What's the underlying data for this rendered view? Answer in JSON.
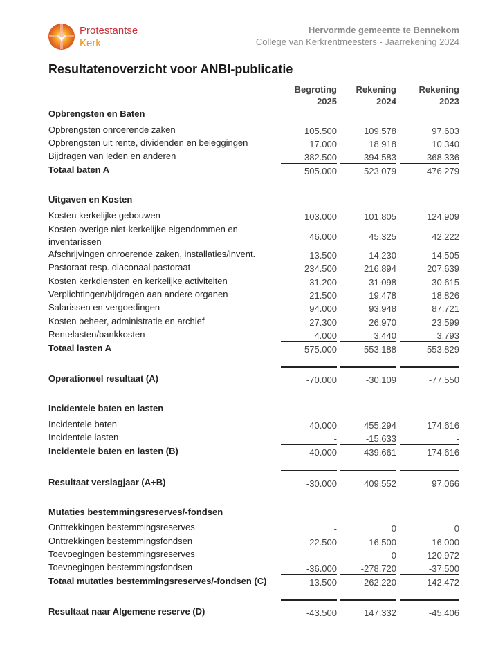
{
  "header": {
    "brand_line1": "Protestantse",
    "brand_line2": "Kerk",
    "organization": "Hervormde gemeente te Bennekom",
    "subtitle": "College van Kerkrentmeesters - Jaarrekening 2024",
    "colors": {
      "brand_red": "#c8313b",
      "brand_orange": "#e8941a"
    }
  },
  "title": "Resultatenoverzicht voor ANBI-publicatie",
  "columns": [
    {
      "line1": "Begroting",
      "line2": "2025"
    },
    {
      "line1": "Rekening",
      "line2": "2024"
    },
    {
      "line1": "Rekening",
      "line2": "2023"
    }
  ],
  "rows": [
    {
      "type": "section",
      "label": "Opbrengsten en Baten"
    },
    {
      "type": "item",
      "label": "Opbrengsten onroerende zaken",
      "values": [
        "105.500",
        "109.578",
        "97.603"
      ]
    },
    {
      "type": "item",
      "label": "Opbrengsten uit rente, dividenden en beleggingen",
      "values": [
        "17.000",
        "18.918",
        "10.340"
      ]
    },
    {
      "type": "item",
      "label": "Bijdragen van leden en anderen",
      "values": [
        "382.500",
        "394.583",
        "368.336"
      ]
    },
    {
      "type": "total",
      "label": "Totaal baten A",
      "values": [
        "505.000",
        "523.079",
        "476.279"
      ]
    },
    {
      "type": "section",
      "label": "Uitgaven en Kosten"
    },
    {
      "type": "item",
      "label": "Kosten kerkelijke gebouwen",
      "values": [
        "103.000",
        "101.805",
        "124.909"
      ]
    },
    {
      "type": "item2",
      "label": "Kosten overige niet-kerkelijke eigendommen en inventarissen",
      "values": [
        "46.000",
        "45.325",
        "42.222"
      ]
    },
    {
      "type": "item",
      "label": "Afschrijvingen onroerende zaken, installaties/invent.",
      "values": [
        "13.500",
        "14.230",
        "14.505"
      ]
    },
    {
      "type": "item",
      "label": "Pastoraat resp. diaconaal pastoraat",
      "values": [
        "234.500",
        "216.894",
        "207.639"
      ]
    },
    {
      "type": "item",
      "label": "Kosten kerkdiensten en kerkelijke activiteiten",
      "values": [
        "31.200",
        "31.098",
        "30.615"
      ]
    },
    {
      "type": "item",
      "label": "Verplichtingen/bijdragen aan andere organen",
      "values": [
        "21.500",
        "19.478",
        "18.826"
      ]
    },
    {
      "type": "item",
      "label": "Salarissen en vergoedingen",
      "values": [
        "94.000",
        "93.948",
        "87.721"
      ]
    },
    {
      "type": "item",
      "label": "Kosten beheer, administratie en archief",
      "values": [
        "27.300",
        "26.970",
        "23.599"
      ]
    },
    {
      "type": "item",
      "label": "Rentelasten/bankkosten",
      "values": [
        "4.000",
        "3.440",
        "3.793"
      ]
    },
    {
      "type": "total",
      "label": "Totaal lasten A",
      "values": [
        "575.000",
        "553.188",
        "553.829"
      ]
    },
    {
      "type": "result",
      "label": "Operationeel resultaat (A)",
      "values": [
        "-70.000",
        "-30.109",
        "-77.550"
      ]
    },
    {
      "type": "section",
      "label": "Incidentele baten en lasten"
    },
    {
      "type": "item",
      "label": "Incidentele baten",
      "values": [
        "40.000",
        "455.294",
        "174.616"
      ]
    },
    {
      "type": "item",
      "label": "Incidentele lasten",
      "values": [
        "-",
        "-15.633",
        "-"
      ]
    },
    {
      "type": "total",
      "label": "Incidentele baten en lasten (B)",
      "values": [
        "40.000",
        "439.661",
        "174.616"
      ]
    },
    {
      "type": "result",
      "label": "Resultaat verslagjaar (A+B)",
      "values": [
        "-30.000",
        "409.552",
        "97.066"
      ]
    },
    {
      "type": "section",
      "label": "Mutaties bestemmingsreserves/-fondsen"
    },
    {
      "type": "item",
      "label": "Onttrekkingen bestemmingsreserves",
      "values": [
        "-",
        "0",
        "0"
      ]
    },
    {
      "type": "item",
      "label": "Onttrekkingen bestemmingsfondsen",
      "values": [
        "22.500",
        "16.500",
        "16.000"
      ]
    },
    {
      "type": "item",
      "label": "Toevoegingen bestemmingsreserves",
      "values": [
        "-",
        "0",
        "-120.972"
      ]
    },
    {
      "type": "item",
      "label": "Toevoegingen bestemmingsfondsen",
      "values": [
        "-36.000",
        "-278.720",
        "-37.500"
      ]
    },
    {
      "type": "total",
      "label": "Totaal mutaties bestemmingsreserves/-fondsen (C)",
      "values": [
        "-13.500",
        "-262.220",
        "-142.472"
      ]
    },
    {
      "type": "result",
      "label": "Resultaat naar Algemene reserve (D)",
      "values": [
        "-43.500",
        "147.332",
        "-45.406"
      ]
    }
  ]
}
